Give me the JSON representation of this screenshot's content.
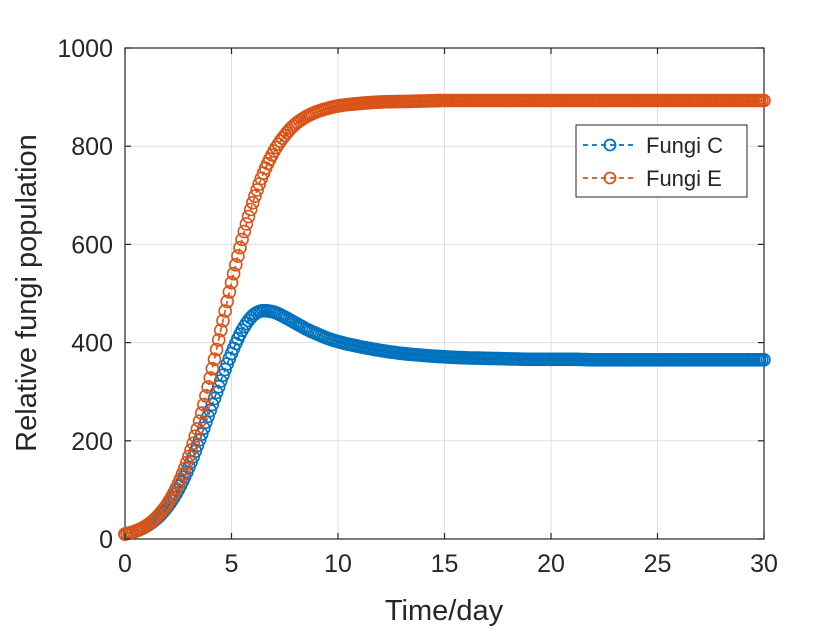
{
  "chart_data": {
    "type": "scatter",
    "title": "",
    "xlabel": "Time/day",
    "ylabel": "Relative fungi population",
    "xlim": [
      0,
      30
    ],
    "ylim": [
      0,
      1000
    ],
    "x_ticks": [
      "0",
      "5",
      "10",
      "15",
      "20",
      "25",
      "30"
    ],
    "y_ticks": [
      "0",
      "200",
      "400",
      "600",
      "800",
      "1000"
    ],
    "grid": true,
    "legend_position": "top-right",
    "marker": "open-circle",
    "line_style": "dashed",
    "series": [
      {
        "name": "Fungi C",
        "color": "#0072BD",
        "x": [
          0,
          0.5,
          1,
          1.5,
          2,
          2.5,
          3,
          3.5,
          4,
          4.5,
          5,
          5.5,
          6,
          6.5,
          7,
          7.5,
          8,
          8.5,
          9,
          9.5,
          10,
          11,
          12,
          13,
          14,
          15,
          16,
          17,
          18,
          19,
          20,
          21,
          22,
          23,
          24,
          25,
          26,
          27,
          28,
          29,
          30
        ],
        "y": [
          10,
          16,
          26,
          42,
          66,
          100,
          146,
          202,
          262,
          322,
          378,
          425,
          455,
          465,
          462,
          452,
          440,
          428,
          418,
          409,
          402,
          392,
          384,
          378,
          374,
          371,
          369,
          368,
          367,
          366,
          366,
          366,
          365,
          365,
          365,
          365,
          365,
          365,
          365,
          365,
          365
        ]
      },
      {
        "name": "Fungi E",
        "color": "#D95319",
        "x": [
          0,
          0.5,
          1,
          1.5,
          2,
          2.5,
          3,
          3.5,
          4,
          4.5,
          5,
          5.5,
          6,
          6.5,
          7,
          7.5,
          8,
          8.5,
          9,
          9.5,
          10,
          11,
          12,
          13,
          14,
          15,
          16,
          17,
          18,
          19,
          20,
          21,
          22,
          23,
          24,
          25,
          26,
          27,
          28,
          29,
          30
        ],
        "y": [
          10,
          16,
          27,
          45,
          72,
          112,
          168,
          240,
          328,
          425,
          522,
          610,
          685,
          745,
          790,
          822,
          845,
          860,
          870,
          877,
          882,
          887,
          890,
          891,
          892,
          893,
          893,
          893,
          893,
          893,
          893,
          893,
          893,
          893,
          893,
          893,
          893,
          893,
          893,
          893,
          893
        ]
      }
    ]
  }
}
